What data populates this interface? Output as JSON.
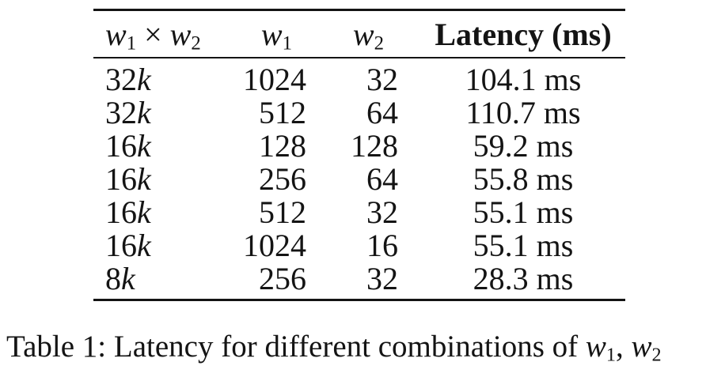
{
  "table": {
    "headers": {
      "size": "w_1 × w_2",
      "w1": "w_1",
      "w2": "w_2",
      "latency": "Latency (ms)"
    },
    "rows": [
      {
        "size": "32k",
        "w1": "1024",
        "w2": "32",
        "latency": "104.1 ms"
      },
      {
        "size": "32k",
        "w1": "512",
        "w2": "64",
        "latency": "110.7 ms"
      },
      {
        "size": "16k",
        "w1": "128",
        "w2": "128",
        "latency": "59.2 ms"
      },
      {
        "size": "16k",
        "w1": "256",
        "w2": "64",
        "latency": "55.8 ms"
      },
      {
        "size": "16k",
        "w1": "512",
        "w2": "32",
        "latency": "55.1 ms"
      },
      {
        "size": "16k",
        "w1": "1024",
        "w2": "16",
        "latency": "55.1 ms"
      },
      {
        "size": "8k",
        "w1": "256",
        "w2": "32",
        "latency": "28.3 ms"
      }
    ]
  },
  "caption": {
    "prefix": "Table 1: Latency for different combinations of ",
    "math1": "w_1",
    "separator": ", ",
    "math2": "w_2"
  },
  "colors": {
    "text": "#141414",
    "rule": "#141414",
    "background": "#ffffff"
  }
}
